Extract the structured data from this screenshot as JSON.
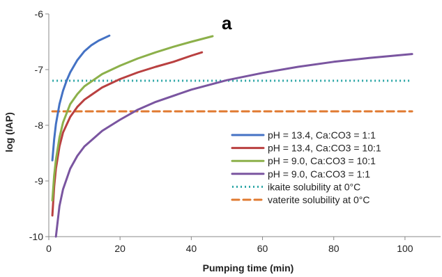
{
  "chart_data": {
    "type": "line",
    "panel_label": "a",
    "xlabel": "Pumping time (min)",
    "ylabel": "log (IAP)",
    "xlim": [
      0,
      110
    ],
    "ylim": [
      -10,
      -6
    ],
    "xticks": [
      0,
      20,
      40,
      60,
      80,
      100
    ],
    "yticks": [
      -10,
      -9,
      -8,
      -7,
      -6
    ],
    "grid": false,
    "legend_position": "bottom-right",
    "series": [
      {
        "name": "pH = 13.4, Ca:CO3 = 1:1",
        "color": "#4472c4",
        "style": "solid",
        "x": [
          1,
          1.5,
          2,
          3,
          4,
          5,
          6,
          8,
          10,
          12,
          14,
          17
        ],
        "y": [
          -8.63,
          -8.25,
          -7.98,
          -7.62,
          -7.38,
          -7.2,
          -7.05,
          -6.83,
          -6.67,
          -6.56,
          -6.48,
          -6.39
        ]
      },
      {
        "name": "pH = 13.4, Ca:CO3 = 10:1",
        "color": "#b94040",
        "style": "solid",
        "x": [
          1,
          1.5,
          2,
          3,
          4,
          6,
          8,
          10,
          15,
          20,
          25,
          30,
          35,
          40,
          43
        ],
        "y": [
          -9.62,
          -9.1,
          -8.78,
          -8.38,
          -8.13,
          -7.85,
          -7.67,
          -7.54,
          -7.32,
          -7.17,
          -7.05,
          -6.95,
          -6.86,
          -6.75,
          -6.69
        ]
      },
      {
        "name": "pH = 9.0, Ca:CO3 = 10:1",
        "color": "#8cb04a",
        "style": "solid",
        "x": [
          1,
          1.5,
          2,
          3,
          4,
          6,
          8,
          10,
          15,
          20,
          25,
          30,
          35,
          40,
          46
        ],
        "y": [
          -9.35,
          -8.9,
          -8.62,
          -8.22,
          -7.95,
          -7.62,
          -7.44,
          -7.3,
          -7.08,
          -6.93,
          -6.8,
          -6.69,
          -6.59,
          -6.5,
          -6.4
        ]
      },
      {
        "name": "pH = 9.0, Ca:CO3 = 1:1",
        "color": "#7a55a0",
        "style": "solid",
        "x": [
          2,
          3,
          4,
          6,
          8,
          10,
          15,
          20,
          25,
          30,
          40,
          50,
          60,
          70,
          80,
          90,
          102
        ],
        "y": [
          -10.0,
          -9.45,
          -9.15,
          -8.78,
          -8.55,
          -8.38,
          -8.1,
          -7.9,
          -7.72,
          -7.58,
          -7.36,
          -7.19,
          -7.06,
          -6.95,
          -6.86,
          -6.79,
          -6.72
        ]
      },
      {
        "name": "ikaite solubility at 0°C",
        "color": "#2aa5a5",
        "style": "dotted",
        "x": [
          1,
          102
        ],
        "y": [
          -7.2,
          -7.2
        ]
      },
      {
        "name": "vaterite solubility at 0°C",
        "color": "#e07a30",
        "style": "dashed",
        "x": [
          1,
          102
        ],
        "y": [
          -7.75,
          -7.75
        ]
      }
    ]
  }
}
